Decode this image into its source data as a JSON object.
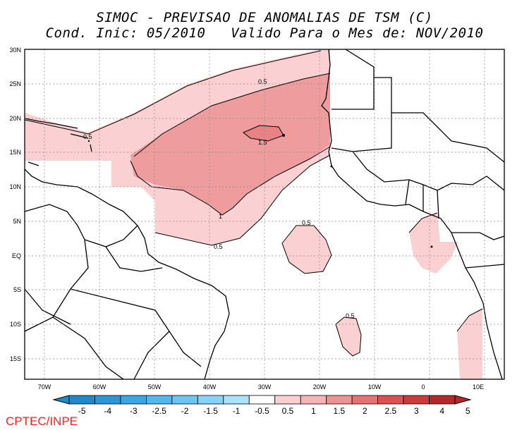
{
  "title": {
    "line1": "SIMOC - PREVISAO DE ANOMALIAS DE TSM (C)",
    "line2": "Cond. Inic: 05/2010   Valido Para o Mes de: NOV/2010"
  },
  "map": {
    "lat_labels": [
      "30N",
      "25N",
      "20N",
      "15N",
      "10N",
      "5N",
      "EQ",
      "5S",
      "10S",
      "15S"
    ],
    "lon_labels": [
      "70W",
      "60W",
      "50W",
      "40W",
      "30W",
      "20W",
      "10W",
      "0",
      "10E"
    ],
    "contour_labels": [
      "0.5",
      "0.5",
      "1.5",
      "1",
      "0.5",
      "0.5",
      "0.5"
    ]
  },
  "colorbar": {
    "labels": [
      "-5",
      "-4",
      "-3",
      "-2.5",
      "-2",
      "-1.5",
      "-1",
      "-0.5",
      "0.5",
      "1",
      "1.5",
      "2",
      "2.5",
      "3",
      "4",
      "5"
    ],
    "colors": [
      "#1f88c8",
      "#2a98d8",
      "#3aa8e4",
      "#52b8ee",
      "#6cc6f4",
      "#88d4f8",
      "#a8e2fb",
      "#ffffff",
      "#fbd0d2",
      "#f7b4b6",
      "#ef9294",
      "#e67274",
      "#dd5052",
      "#cc3a3c",
      "#b42829"
    ]
  },
  "credit": "CPTEC/INPE"
}
